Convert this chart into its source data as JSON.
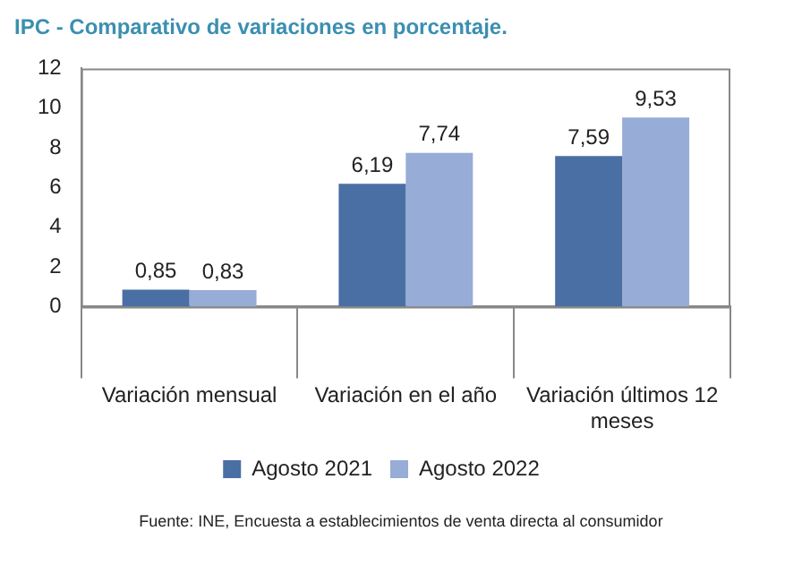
{
  "chart_data": {
    "type": "bar",
    "title": "IPC - Comparativo de variaciones en porcentaje.",
    "categories": [
      "Variación mensual",
      "Variación en el año",
      "Variación últimos 12 meses"
    ],
    "series": [
      {
        "name": "Agosto 2021",
        "color": "#4a6fa5",
        "values": [
          0.85,
          6.19,
          7.59
        ],
        "value_labels": [
          "0,85",
          "6,19",
          "7,59"
        ]
      },
      {
        "name": "Agosto 2022",
        "color": "#97acd6",
        "values": [
          0.83,
          7.74,
          9.53
        ],
        "value_labels": [
          "0,83",
          "7,74",
          "9,53"
        ]
      }
    ],
    "ylim": [
      0,
      12
    ],
    "yticks": [
      0,
      2,
      4,
      6,
      8,
      10,
      12
    ],
    "grid": false,
    "legend": "bottom",
    "annotations": [
      "Fuente: INE, Encuesta a establecimientos de venta directa al consumidor"
    ]
  }
}
